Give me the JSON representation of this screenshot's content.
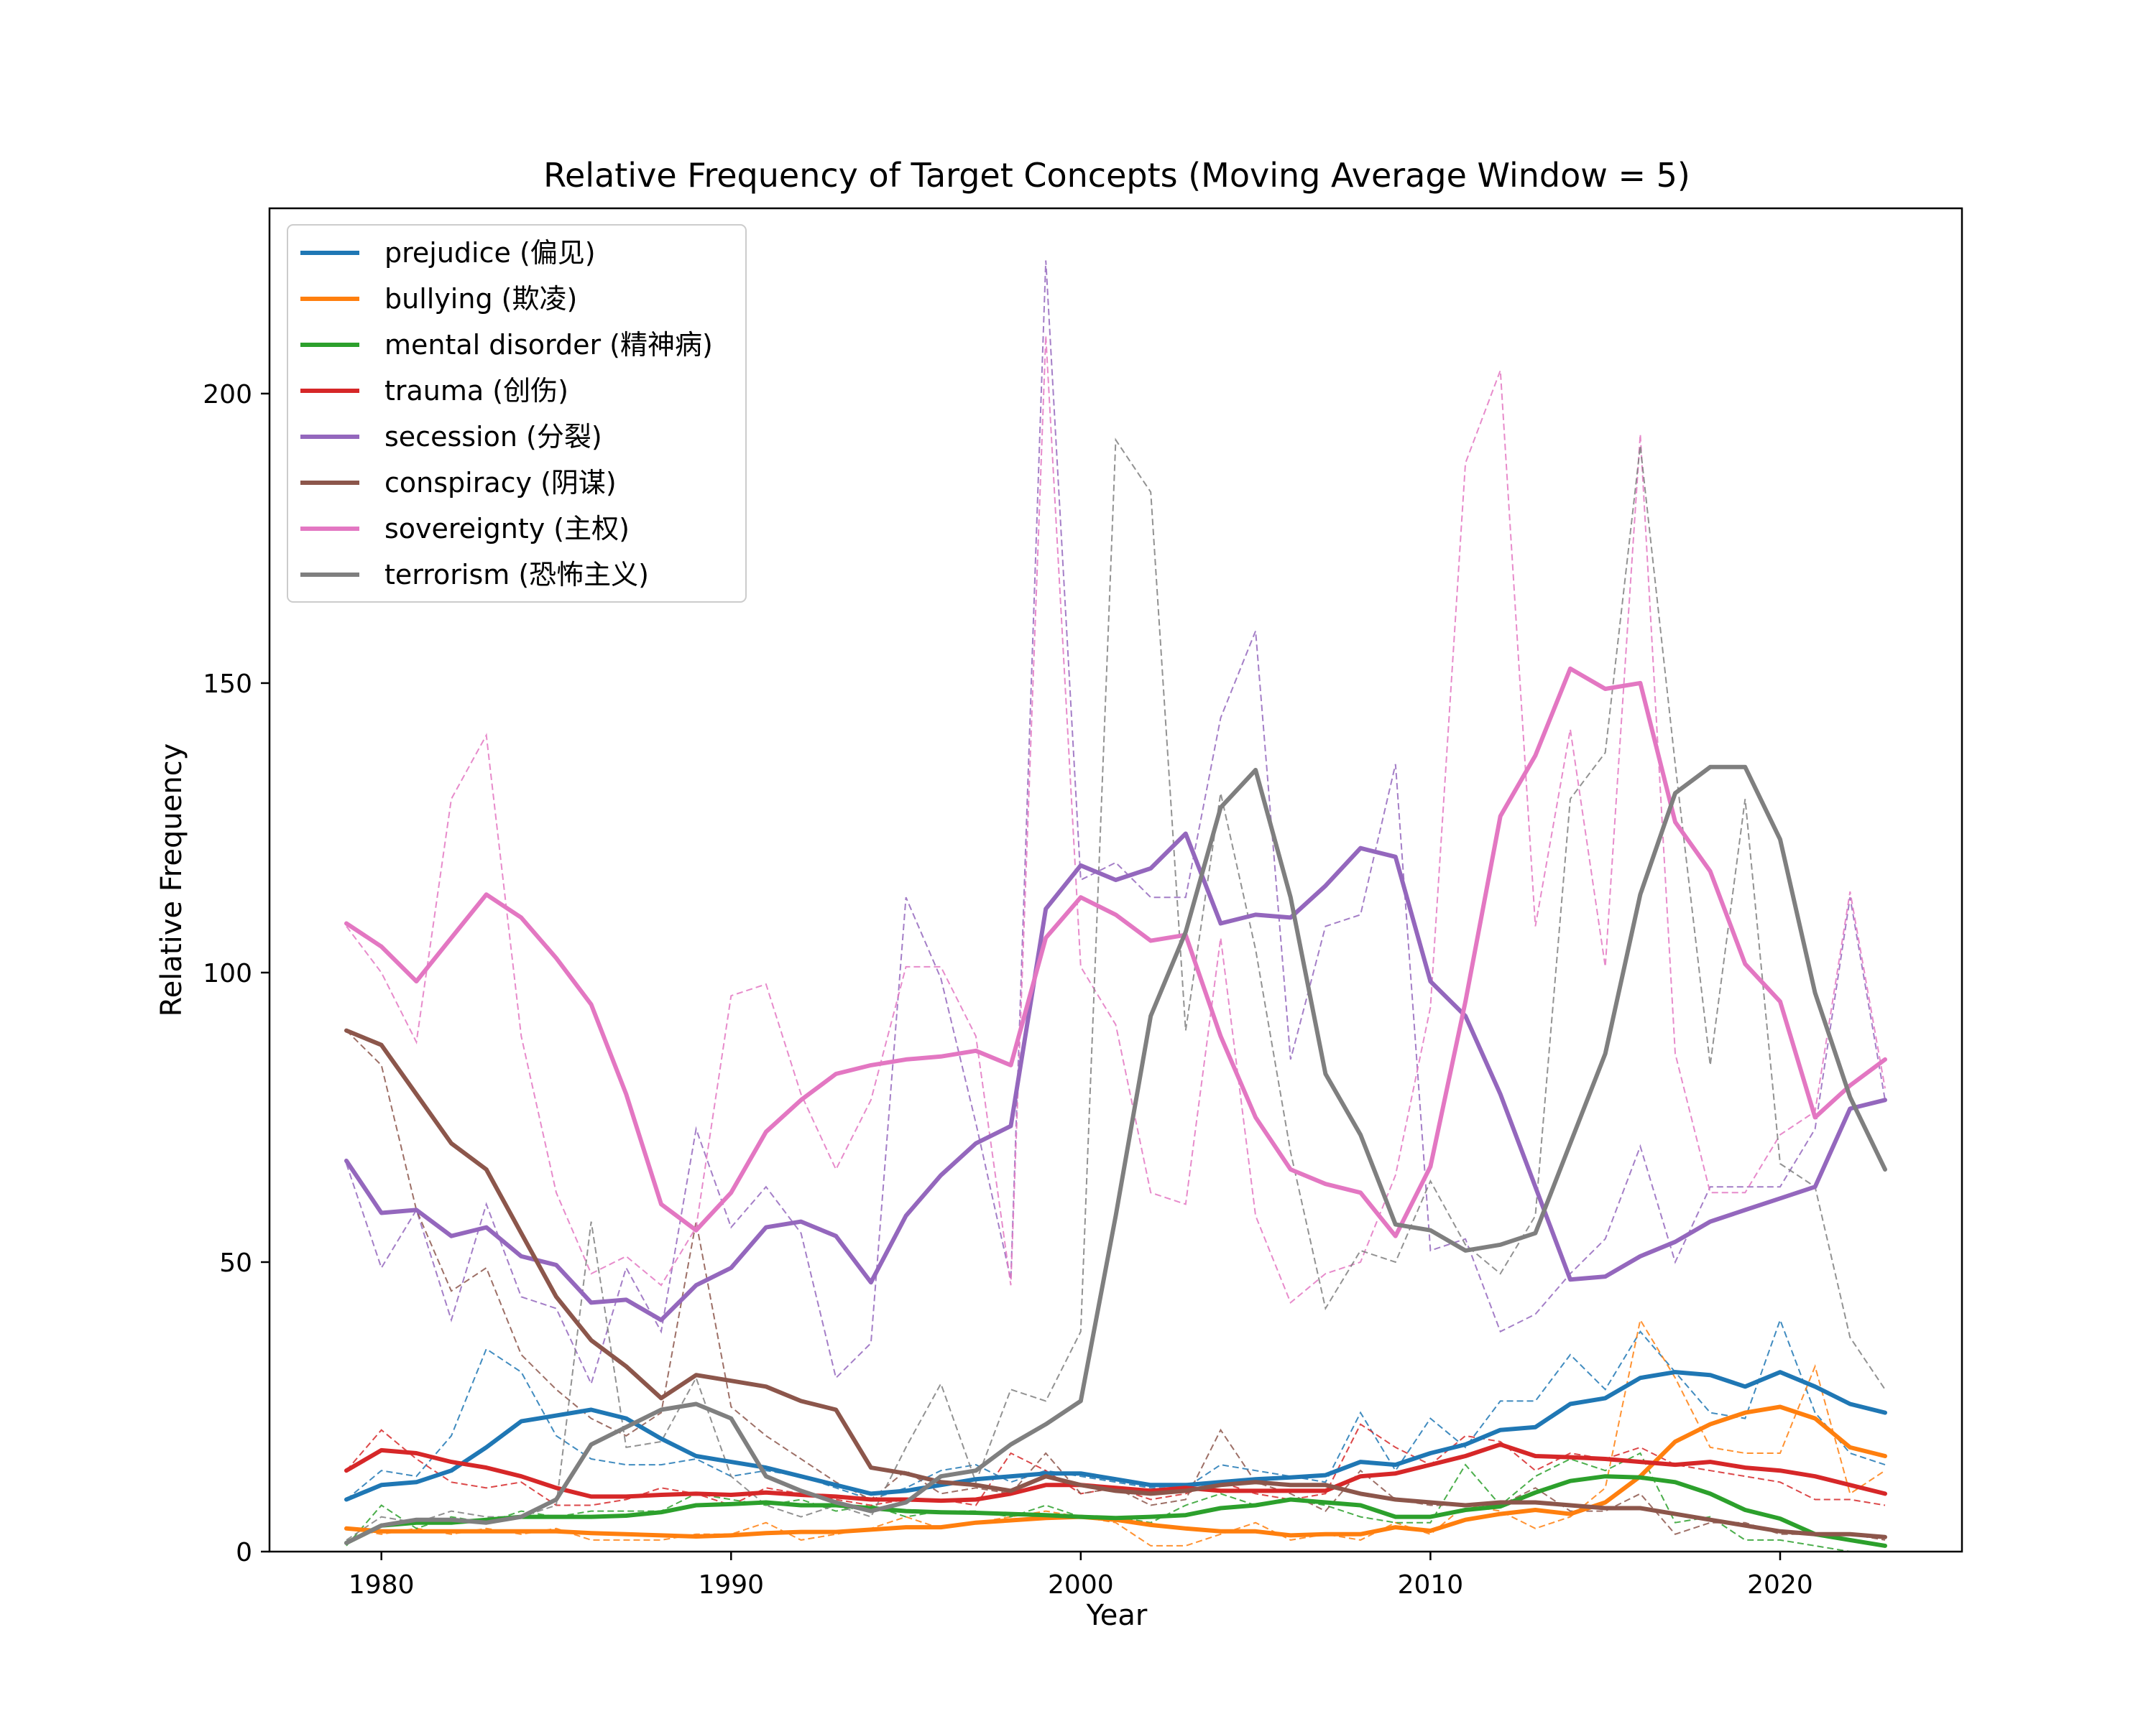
{
  "chart_data": {
    "type": "line",
    "title": "Relative Frequency of Target Concepts (Moving Average Window = 5)",
    "xlabel": "Year",
    "ylabel": "Relative Frequency",
    "xlim": [
      1976.8,
      2025.2
    ],
    "ylim": [
      0,
      232
    ],
    "xticks": [
      1980,
      1990,
      2000,
      2010,
      2020
    ],
    "yticks": [
      0,
      50,
      100,
      150,
      200
    ],
    "grid": false,
    "legend_position": "upper-left",
    "x": [
      1979,
      1980,
      1981,
      1982,
      1983,
      1984,
      1985,
      1986,
      1987,
      1988,
      1989,
      1990,
      1991,
      1992,
      1993,
      1994,
      1995,
      1996,
      1997,
      1998,
      1999,
      2000,
      2001,
      2002,
      2003,
      2004,
      2005,
      2006,
      2007,
      2008,
      2009,
      2010,
      2011,
      2012,
      2013,
      2014,
      2015,
      2016,
      2017,
      2018,
      2019,
      2020,
      2021,
      2022,
      2023
    ],
    "series": [
      {
        "name": "prejudice (偏见)",
        "color": "#1f77b4",
        "smoothed": [
          9,
          11.5,
          12,
          14,
          18,
          22.5,
          23.5,
          24.5,
          23,
          19.5,
          16.5,
          15.5,
          14.5,
          13,
          11.5,
          10,
          10.5,
          11.5,
          12.5,
          13,
          13.5,
          13.5,
          12.5,
          11.5,
          11.5,
          12,
          12.5,
          12.8,
          13.2,
          15.5,
          15,
          17,
          18.5,
          21,
          21.5,
          25.5,
          26.5,
          30,
          31,
          30.5,
          28.5,
          31,
          28.5,
          25.5,
          24
        ],
        "raw": [
          9,
          14,
          13,
          20,
          35,
          31,
          20,
          16,
          15,
          15,
          16,
          13,
          14,
          13,
          11,
          9,
          11,
          14,
          15,
          12,
          14,
          13,
          12,
          11,
          11,
          15,
          14,
          13,
          12,
          24,
          14,
          23,
          18,
          26,
          26,
          34,
          28,
          38,
          31,
          24,
          23,
          40,
          24,
          17,
          15
        ]
      },
      {
        "name": "bullying (欺凌)",
        "color": "#ff7f0e",
        "smoothed": [
          4,
          3.5,
          3.5,
          3.5,
          3.5,
          3.5,
          3.5,
          3.2,
          3,
          2.8,
          2.6,
          2.8,
          3.2,
          3.4,
          3.4,
          3.8,
          4.2,
          4.2,
          5,
          5.4,
          5.8,
          6,
          5.5,
          4.6,
          4,
          3.5,
          3.5,
          2.8,
          3,
          3,
          4.2,
          3.6,
          5.5,
          6.5,
          7.2,
          6.5,
          8.5,
          13,
          19,
          22,
          24,
          25,
          23,
          18,
          16.5
        ],
        "raw": [
          4,
          3,
          4,
          3,
          4,
          3,
          4,
          2,
          2,
          2,
          3,
          3,
          5,
          2,
          3,
          4,
          6,
          4,
          5,
          6,
          7,
          6,
          5,
          1,
          1,
          3,
          5,
          2,
          3,
          2,
          5,
          3,
          8,
          7,
          4,
          6,
          11,
          40,
          30,
          18,
          17,
          17,
          32,
          10,
          14
        ]
      },
      {
        "name": "mental disorder (精神病)",
        "color": "#2ca02c",
        "smoothed": [
          1.5,
          4.5,
          5,
          5,
          5.5,
          6,
          6,
          6,
          6.2,
          6.8,
          8,
          8.2,
          8.5,
          8,
          8,
          7.5,
          7,
          6.8,
          6.7,
          6.5,
          6.3,
          6,
          5.8,
          6,
          6.3,
          7.5,
          8,
          9,
          8.5,
          8,
          6,
          6,
          7.2,
          7.8,
          10.2,
          12.2,
          13,
          12.8,
          12,
          10,
          7.2,
          5.7,
          3,
          2,
          1
        ],
        "raw": [
          1,
          8,
          4,
          6,
          5,
          7,
          6,
          7,
          7,
          7,
          10,
          9,
          8,
          9,
          7,
          8,
          6,
          7,
          7,
          6,
          8,
          6,
          6,
          5,
          8,
          10,
          8,
          9,
          8,
          6,
          5,
          5,
          15,
          8,
          13,
          16,
          14,
          17,
          5,
          6,
          2,
          2,
          1,
          0,
          0
        ]
      },
      {
        "name": "trauma (创伤)",
        "color": "#d62728",
        "smoothed": [
          14,
          17.5,
          17,
          15.5,
          14.5,
          13,
          11,
          9.5,
          9.5,
          9.8,
          10,
          9.8,
          10.2,
          9.8,
          9.5,
          9,
          9,
          8.8,
          9,
          10,
          11.5,
          11.5,
          11,
          10.5,
          11,
          10.5,
          10.5,
          10.5,
          10.5,
          13,
          13.5,
          15,
          16.5,
          18.5,
          16.5,
          16.3,
          16,
          15.5,
          15,
          15.5,
          14.5,
          14,
          13,
          11.5,
          10
        ],
        "raw": [
          14,
          21,
          16,
          12,
          11,
          12,
          8,
          8,
          9,
          11,
          10,
          8,
          11,
          10,
          9,
          8,
          9,
          9,
          8,
          17,
          14,
          10,
          11,
          9,
          10,
          12,
          10,
          9,
          10,
          22,
          18,
          15,
          20,
          19,
          14,
          17,
          16,
          18,
          15,
          14,
          13,
          12,
          9,
          9,
          8
        ]
      },
      {
        "name": "secession (分裂)",
        "color": "#9467bd",
        "smoothed": [
          67.5,
          58.5,
          59,
          54.5,
          56,
          51,
          49.5,
          43,
          43.5,
          40,
          46,
          49,
          56,
          57,
          54.5,
          46.5,
          58,
          65,
          70.5,
          73.5,
          111,
          118.5,
          116,
          118,
          124,
          108.5,
          110,
          109.5,
          115,
          121.5,
          120,
          98.5,
          92.5,
          79,
          63,
          47,
          47.5,
          51,
          53.5,
          57,
          59,
          61,
          63,
          76.5,
          78
        ],
        "raw": [
          67,
          49,
          59,
          40,
          60,
          44,
          42,
          29,
          49,
          38,
          73,
          56,
          63,
          55,
          30,
          36,
          113,
          99,
          74,
          47,
          223,
          116,
          119,
          113,
          113,
          144,
          159,
          85,
          108,
          110,
          136,
          52,
          54,
          38,
          41,
          48,
          54,
          70,
          50,
          63,
          63,
          63,
          73,
          113,
          78
        ]
      },
      {
        "name": "conspiracy (阴谋)",
        "color": "#8c564b",
        "smoothed": [
          90,
          87.5,
          79,
          70.5,
          66,
          55,
          44,
          36.5,
          32,
          26.5,
          30.5,
          29.5,
          28.5,
          26,
          24.5,
          14.5,
          13.5,
          12,
          11.5,
          10.5,
          13,
          11.5,
          10.5,
          10,
          10.5,
          11.5,
          12,
          11.5,
          11.5,
          10,
          9,
          8.5,
          8,
          8.5,
          8.5,
          8,
          7.5,
          7.5,
          6.5,
          5.5,
          4.5,
          3.5,
          3,
          3,
          2.5
        ],
        "raw": [
          90,
          84,
          59,
          45,
          49,
          34,
          28,
          23,
          20,
          24,
          57,
          25,
          20,
          16,
          12,
          9,
          14,
          10,
          11,
          10,
          17,
          10,
          11,
          8,
          9,
          21,
          12,
          10,
          7,
          14,
          9,
          8,
          8,
          8,
          11,
          7,
          7,
          10,
          3,
          5,
          5,
          3,
          3,
          3,
          2
        ]
      },
      {
        "name": "sovereignty (主权)",
        "color": "#e377c2",
        "smoothed": [
          108.5,
          104.5,
          98.5,
          106,
          113.5,
          109.5,
          102.5,
          94.5,
          79,
          60,
          55.5,
          62,
          72.5,
          78,
          82.5,
          84,
          85,
          85.5,
          86.5,
          84,
          106,
          113,
          110,
          105.5,
          106.5,
          89,
          75,
          66,
          63.5,
          62,
          54.5,
          66.5,
          95,
          127,
          137.5,
          152.5,
          149,
          150,
          126,
          117.5,
          101.5,
          95,
          75,
          80.5,
          85
        ],
        "raw": [
          108,
          100,
          88,
          130,
          141,
          89,
          62,
          48,
          51,
          46,
          56,
          96,
          98,
          79,
          66,
          78,
          101,
          101,
          89,
          46,
          210,
          101,
          91,
          62,
          60,
          106,
          58,
          43,
          48,
          50,
          65,
          94,
          188,
          204,
          108,
          142,
          101,
          193,
          86,
          62,
          62,
          72,
          76,
          114,
          80
        ]
      },
      {
        "name": "terrorism (恐怖主义)",
        "color": "#7f7f7f",
        "smoothed": [
          1.5,
          4.5,
          5.5,
          5.5,
          5,
          6,
          9,
          18.5,
          21.5,
          24.5,
          25.5,
          23,
          13,
          10.5,
          8.5,
          7,
          8.5,
          13,
          14,
          18.5,
          22,
          26,
          58,
          92.5,
          107,
          128.5,
          135,
          113,
          82.5,
          72,
          56.5,
          55.5,
          52,
          53,
          55,
          70.5,
          86,
          113.5,
          131,
          135.5,
          135.5,
          123,
          96.5,
          78.5,
          66
        ],
        "raw": [
          2,
          6,
          5,
          7,
          6,
          6,
          8,
          57,
          18,
          19,
          30,
          13,
          8,
          6,
          8,
          6,
          18,
          29,
          12,
          28,
          26,
          38,
          192,
          183,
          90,
          131,
          104,
          69,
          42,
          52,
          50,
          64,
          53,
          48,
          58,
          130,
          138,
          191,
          136,
          84,
          130,
          67,
          63,
          37,
          28
        ]
      }
    ]
  }
}
